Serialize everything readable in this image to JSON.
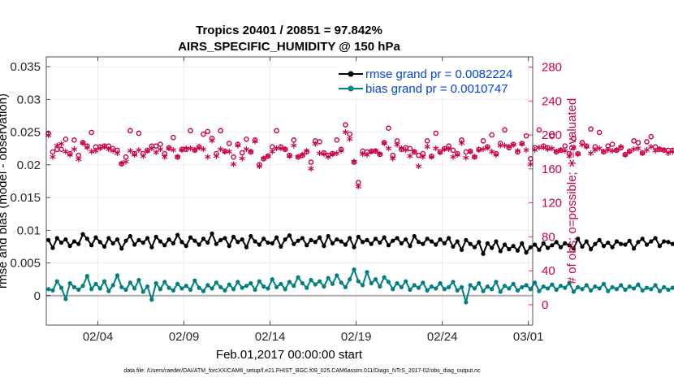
{
  "chart_data": {
    "type": "line",
    "title": "Tropics 20401 / 20851 = 97.842%",
    "subtitle": "AIRS_SPECIFIC_HUMIDITY @ 150 hPa",
    "xlabel": "Feb.01,2017 00:00:00 start",
    "ylabel": "rmse and bias (model - observation)",
    "y2label": "# of obs: o=possible; ∗=evaluated",
    "footer": "data file: /Users/raeder/DAI/ATM_forcXX/CAM6_setup/f.e21.FHIST_BGC.f09_025.CAM6assim.011/Diags_NTrS_2017-02/obs_diag_output.nc",
    "xlim": [
      1,
      29.25
    ],
    "ylim": [
      -0.0045,
      0.0365
    ],
    "y2lim": [
      -24,
      292
    ],
    "x_ticks": [
      4,
      9,
      14,
      19,
      24,
      29
    ],
    "x_tick_labels": [
      "02/04",
      "02/09",
      "02/14",
      "02/19",
      "02/24",
      "03/01"
    ],
    "y_ticks": [
      0,
      0.005,
      0.01,
      0.015,
      0.02,
      0.025,
      0.03,
      0.035
    ],
    "y_tick_labels": [
      "0",
      "0.005",
      "0.01",
      "0.015",
      "0.02",
      "0.025",
      "0.03",
      "0.035"
    ],
    "y2_ticks": [
      0,
      40,
      80,
      120,
      160,
      200,
      240,
      280
    ],
    "y2_tick_labels": [
      "0",
      "40",
      "80",
      "120",
      "160",
      "200",
      "240",
      "280"
    ],
    "x_start": 1.125,
    "x_step": 0.25,
    "series": [
      {
        "name": "rmse",
        "legend": "rmse grand pr = 0.0082224",
        "color": "#000000",
        "values": [
          0.0085,
          0.0073,
          0.0088,
          0.0081,
          0.0086,
          0.0076,
          0.0083,
          0.0079,
          0.0094,
          0.0087,
          0.0077,
          0.0089,
          0.0082,
          0.0075,
          0.0088,
          0.008,
          0.0086,
          0.0072,
          0.0084,
          0.0091,
          0.0078,
          0.0085,
          0.0081,
          0.0088,
          0.0074,
          0.009,
          0.0083,
          0.0077,
          0.0086,
          0.008,
          0.0093,
          0.0082,
          0.0076,
          0.0089,
          0.0084,
          0.0078,
          0.0087,
          0.0081,
          0.0095,
          0.0079,
          0.0085,
          0.0088,
          0.0076,
          0.009,
          0.0082,
          0.0086,
          0.0074,
          0.0091,
          0.0083,
          0.0078,
          0.0087,
          0.0081,
          0.008,
          0.0089,
          0.0075,
          0.0086,
          0.0092,
          0.0079,
          0.0084,
          0.0088,
          0.0077,
          0.0085,
          0.0082,
          0.0089,
          0.0076,
          0.0091,
          0.008,
          0.0086,
          0.0083,
          0.0078,
          0.0088,
          0.0074,
          0.009,
          0.0082,
          0.0085,
          0.0079,
          0.0087,
          0.0081,
          0.0089,
          0.0077,
          0.0084,
          0.0088,
          0.008,
          0.0086,
          0.0076,
          0.0091,
          0.0082,
          0.0079,
          0.0087,
          0.0083,
          0.0078,
          0.0086,
          0.008,
          0.0088,
          0.0075,
          0.0083,
          0.007,
          0.0085,
          0.0079,
          0.0074,
          0.0082,
          0.0064,
          0.008,
          0.0073,
          0.0083,
          0.0068,
          0.0078,
          0.0071,
          0.0076,
          0.0069,
          0.008,
          0.0066,
          0.0074,
          0.0078,
          0.007,
          0.008,
          0.0073,
          0.0077,
          0.0082,
          0.0074,
          0.008,
          0.0077,
          0.0072,
          0.0087,
          0.0075,
          0.0083,
          0.0071,
          0.0079,
          0.0085,
          0.0076,
          0.0081,
          0.0074,
          0.0083,
          0.0079,
          0.0078,
          0.0084,
          0.0072,
          0.0082,
          0.0087,
          0.0078,
          0.0083,
          0.0088,
          0.0076,
          0.0083,
          0.0082,
          0.0079,
          0.0085,
          0.0076,
          0.0092,
          0.008,
          0.0084,
          0.0078,
          0.0075,
          0.008,
          0.0076,
          0.0073,
          0.0081,
          0.0078,
          0.0074,
          0.0082,
          0.0075,
          0.0085,
          0.0079,
          0.0072,
          0.0087,
          0.008,
          0.0082,
          0.0077,
          0.0088,
          0.0074,
          0.0081,
          0.0076,
          0.0069,
          0.008,
          0.0074,
          0.0078,
          0.0082,
          0.0076,
          0.0079,
          0.0086,
          0.0077,
          0.0081,
          0.0074,
          0.0084,
          0.0078,
          0.0089,
          0.008,
          0.0083,
          0.0076,
          0.0082,
          0.0078,
          0.0087,
          0.0081,
          0.0091,
          0.0082,
          0.0079,
          0.0094,
          0.0084,
          0.0078,
          0.0086,
          0.008,
          0.0083,
          0.009,
          0.0103,
          0.0078,
          0.0085,
          0.01,
          0.0086,
          0.0081,
          0.0085,
          0.0082
        ]
      },
      {
        "name": "bias",
        "legend": "bias grand pr = 0.0010747",
        "color": "#008080",
        "values": [
          0.001,
          0.0008,
          0.0022,
          0.0012,
          -0.0005,
          0.0019,
          0.0013,
          0.0009,
          0.0015,
          0.003,
          0.001,
          0.0018,
          0.0011,
          0.0022,
          0.0007,
          0.0016,
          0.0031,
          0.0013,
          0.0009,
          0.002,
          0.0011,
          0.0024,
          0.0006,
          0.0014,
          -0.0006,
          0.0019,
          0.001,
          0.0021,
          0.0012,
          0.0008,
          0.0018,
          0.0011,
          0.0015,
          0.0009,
          0.0023,
          0.0012,
          0.0007,
          0.0016,
          0.0011,
          0.002,
          0.0013,
          0.0008,
          0.0017,
          0.001,
          0.0021,
          0.0012,
          0.0015,
          0.0019,
          0.0009,
          0.0022,
          0.0014,
          0.0011,
          0.0025,
          0.0013,
          0.0018,
          0.001,
          0.0021,
          0.0015,
          0.0028,
          0.0019,
          0.0012,
          0.0024,
          0.0017,
          0.0022,
          0.0014,
          0.0027,
          0.0018,
          0.0031,
          0.002,
          0.0013,
          0.0025,
          0.004,
          0.0022,
          0.0016,
          0.0036,
          0.0019,
          0.0025,
          0.0014,
          0.0028,
          0.0021,
          0.001,
          0.0019,
          0.0013,
          0.0022,
          0.0009,
          0.0016,
          0.0012,
          0.002,
          0.0008,
          0.0014,
          0.0011,
          0.0019,
          0.001,
          0.0013,
          0.0021,
          0.0008,
          0.0013,
          -0.001,
          0.0016,
          0.0011,
          0.0019,
          0.0007,
          0.0014,
          0.001,
          0.0021,
          0.0006,
          0.0015,
          0.0011,
          0.0018,
          0.0008,
          0.0013,
          0.0016,
          0.001,
          0.002,
          0.0007,
          0.0014,
          0.0011,
          0.0017,
          0.0009,
          0.0015,
          0.0012,
          0.0019,
          0.0006,
          0.0013,
          0.001,
          0.0016,
          0.0008,
          0.0014,
          0.0011,
          0.0018,
          0.0007,
          0.0013,
          0.001,
          0.0016,
          0.0009,
          0.0014,
          0.0011,
          0.0017,
          0.0008,
          0.0012,
          0.001,
          0.0016,
          0.0007,
          0.0013,
          0.0009,
          0.0012,
          0.0008,
          0.0011,
          0.0006,
          0.0012,
          0.0007,
          0.001,
          0.0005,
          0.0009,
          0.0006,
          0.001,
          0.0004,
          0.0008,
          0.0005,
          0.0009,
          0.0003,
          0.0007,
          0.0005,
          0.0008,
          0.0002,
          0.0006,
          0.0004,
          0.0001,
          0.0005,
          -0.0002,
          0.0004,
          0.0,
          -0.0005,
          0.0003,
          -0.0008,
          -0.0003,
          0.0002,
          -0.001,
          -0.0004,
          0.0001,
          -0.0007,
          0.0003,
          -0.0005,
          0.0,
          -0.0009,
          0.0002,
          0.0005,
          -0.0006,
          0.0001,
          -0.0004,
          0.0003,
          -0.0008,
          0.0,
          0.0004,
          -0.0005,
          0.0019,
          -0.0003,
          0.0001,
          -0.0006,
          0.0017,
          0.0003,
          -0.0004,
          0.0,
          -0.0028,
          0.0002,
          -0.0005,
          0.0,
          -0.0001,
          0.0002,
          -0.0008,
          0.0001,
          0.0,
          -0.0006,
          0.0,
          0.0002
        ]
      },
      {
        "name": "possible",
        "marker": "o",
        "color": "#cc0044",
        "values": [
          202,
          180,
          183,
          183,
          195,
          178,
          194,
          176,
          191,
          187,
          203,
          186,
          186,
          187,
          187,
          184,
          182,
          166,
          174,
          205,
          178,
          202,
          178,
          182,
          187,
          187,
          189,
          178,
          185,
          197,
          174,
          183,
          183,
          205,
          182,
          186,
          201,
          204,
          196,
          178,
          205,
          181,
          190,
          174,
          189,
          179,
          195,
          180,
          194,
          165,
          172,
          175,
          186,
          205,
          186,
          183,
          176,
          194,
          174,
          176,
          180,
          168,
          193,
          192,
          179,
          176,
          178,
          194,
          183,
          212,
          201,
          168,
          144,
          181,
          180,
          181,
          181,
          177,
          191,
          208,
          176,
          193,
          183,
          185,
          184,
          180,
          176,
          178,
          193,
          175,
          202,
          180,
          184,
          187,
          182,
          178,
          194,
          180,
          181,
          174,
          183,
          193,
          186,
          200,
          178,
          190,
          206,
          185,
          189,
          180,
          190,
          199,
          172,
          185,
          206,
          187,
          185,
          199,
          180,
          182,
          187,
          178,
          196,
          178,
          191,
          187,
          207,
          186,
          203,
          180,
          187,
          189,
          182,
          185,
          177,
          181,
          193,
          191,
          179,
          192,
          198,
          186,
          183,
          182,
          182,
          182,
          201,
          175,
          198,
          179,
          192,
          172,
          186,
          185,
          195,
          185,
          178,
          198,
          182,
          187,
          175,
          203,
          177,
          182,
          200,
          184,
          183,
          200,
          194,
          181,
          185,
          191,
          186,
          185,
          180,
          182,
          200,
          187,
          192,
          189,
          180,
          184,
          189,
          177,
          188,
          188,
          192,
          183,
          205,
          182,
          180,
          180,
          188,
          186,
          192,
          192,
          194,
          186,
          185,
          199,
          186,
          171,
          184,
          185,
          187,
          180,
          181,
          184,
          182,
          180,
          192,
          205,
          183,
          190,
          180,
          182,
          200,
          185,
          193,
          200,
          186,
          202
        ]
      },
      {
        "name": "evaluated",
        "marker": "*",
        "color": "#cc0044",
        "values": [
          197,
          172,
          185,
          187,
          178,
          174,
          181,
          169,
          188,
          183,
          178,
          179,
          182,
          184,
          181,
          179,
          176,
          164,
          166,
          179,
          174,
          180,
          173,
          179,
          182,
          177,
          181,
          172,
          182,
          180,
          172,
          180,
          182,
          182,
          180,
          183,
          181,
          172,
          191,
          173,
          181,
          178,
          178,
          163,
          185,
          170,
          181,
          178,
          190,
          161,
          170,
          173,
          178,
          182,
          182,
          181,
          173,
          185,
          172,
          174,
          179,
          158,
          187,
          176,
          175,
          172,
          175,
          176,
          179,
          201,
          193,
          166,
          137,
          175,
          174,
          178,
          179,
          175,
          188,
          182,
          170,
          186,
          182,
          180,
          173,
          178,
          161,
          172,
          184,
          172,
          182,
          177,
          181,
          181,
          172,
          174,
          188,
          171,
          178,
          172,
          180,
          181,
          183,
          178,
          174,
          185,
          185,
          184,
          186,
          179,
          187,
          180,
          163,
          180,
          183,
          183,
          181,
          182,
          178,
          180,
          179,
          173,
          183,
          175,
          186,
          184,
          176,
          180,
          182,
          178,
          180,
          179,
          180,
          184,
          174,
          178,
          181,
          182,
          176,
          180,
          184,
          179,
          181,
          180,
          176,
          178,
          182,
          170,
          186,
          171,
          181,
          164,
          181,
          177,
          183,
          179,
          173,
          181,
          180,
          181,
          174,
          177,
          173,
          181,
          185,
          180,
          178,
          178,
          183,
          178,
          181,
          176,
          183,
          181,
          176,
          180,
          174,
          181,
          184,
          179,
          174,
          181,
          179,
          165,
          186,
          183,
          185,
          178,
          175,
          180,
          175,
          172,
          181,
          182,
          183,
          182,
          180,
          181,
          181,
          172,
          178,
          166,
          181,
          180,
          178,
          175,
          178,
          181,
          171,
          177,
          179,
          189,
          180,
          180,
          177,
          178,
          176,
          181,
          185,
          177,
          179,
          180
        ]
      }
    ]
  }
}
